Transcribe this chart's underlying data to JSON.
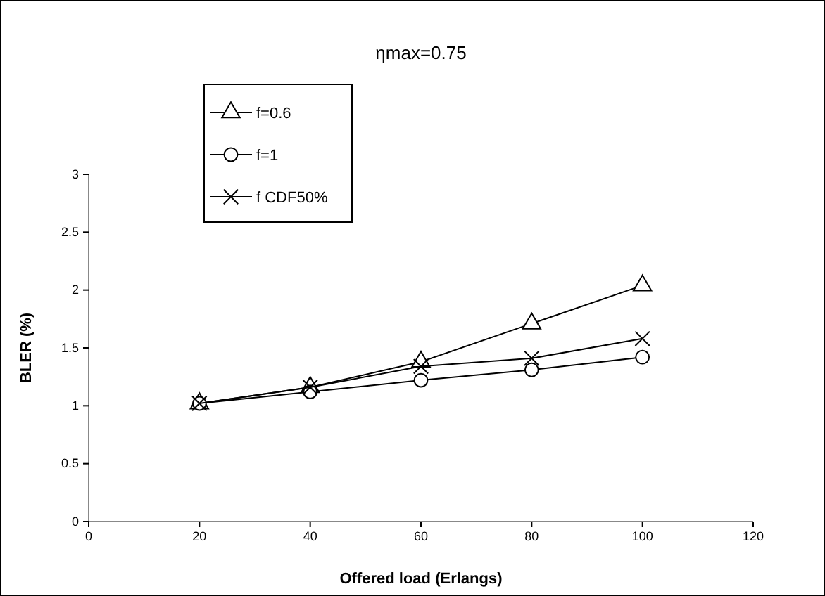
{
  "chart_data": {
    "type": "line",
    "title": "ηmax=0.75",
    "xlabel": "Offered load (Erlangs)",
    "ylabel": "BLER (%)",
    "x": [
      20,
      40,
      60,
      80,
      100
    ],
    "series": [
      {
        "name": "f=0.6",
        "color": "#000000",
        "marker": "triangle",
        "values": [
          1.02,
          1.16,
          1.38,
          1.71,
          2.04
        ]
      },
      {
        "name": "f=1",
        "color": "#000000",
        "marker": "circle",
        "values": [
          1.02,
          1.12,
          1.22,
          1.31,
          1.42
        ]
      },
      {
        "name": "f CDF50%",
        "color": "#000000",
        "marker": "cross",
        "values": [
          1.02,
          1.16,
          1.34,
          1.41,
          1.58
        ]
      }
    ],
    "xlim": [
      0,
      120
    ],
    "xticks": [
      0,
      20,
      40,
      60,
      80,
      100,
      120
    ],
    "ylim": [
      0,
      3
    ],
    "yticks": [
      0,
      0.5,
      1,
      1.5,
      2,
      2.5,
      3
    ],
    "grid": false,
    "legend": "top left",
    "line_style": "solid"
  }
}
